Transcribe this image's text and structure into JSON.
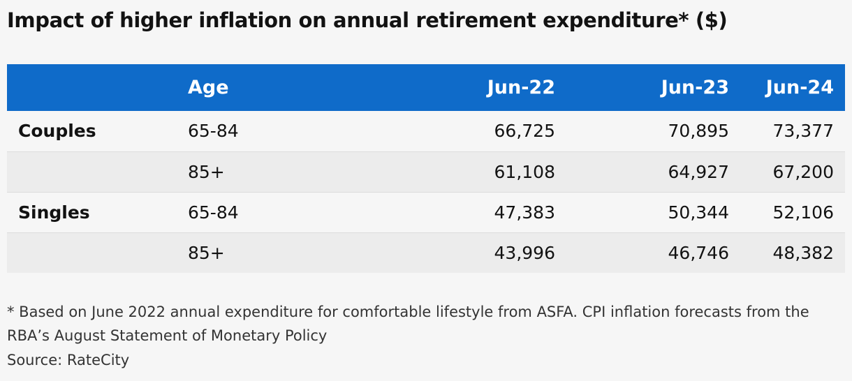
{
  "chart_data": {
    "type": "table",
    "title": "Impact of higher inflation on annual retirement expenditure* ($)",
    "columns": [
      "",
      "Age",
      "Jun-22",
      "Jun-23",
      "Jun-24"
    ],
    "rows": [
      {
        "group": "Couples",
        "age": "65-84",
        "values": [
          "66,725",
          "70,895",
          "73,377"
        ]
      },
      {
        "group": "",
        "age": "85+",
        "values": [
          "61,108",
          "64,927",
          "67,200"
        ]
      },
      {
        "group": "Singles",
        "age": "65-84",
        "values": [
          "47,383",
          "50,344",
          "52,106"
        ]
      },
      {
        "group": "",
        "age": "85+",
        "values": [
          "43,996",
          "46,746",
          "48,382"
        ]
      }
    ],
    "footnote": "* Based on June 2022 annual expenditure for comfortable lifestyle from ASFA. CPI inflation forecasts from the RBA’s August Statement of Monetary Policy",
    "source": "Source: RateCity"
  },
  "colors": {
    "header_background": "#0f6bc9",
    "header_text": "#ffffff",
    "row_alt": "#ececec",
    "background": "#f6f6f6"
  }
}
